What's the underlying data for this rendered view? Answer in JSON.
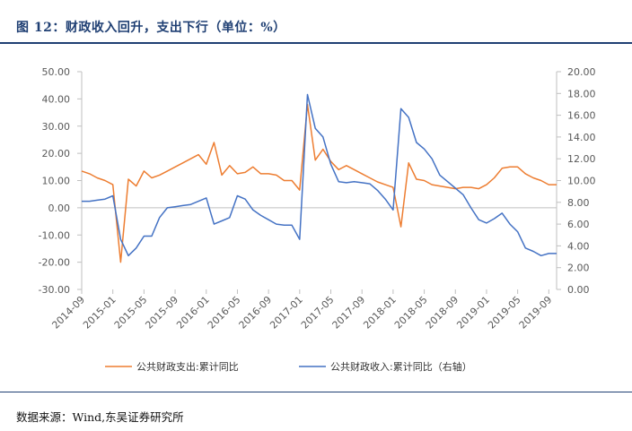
{
  "figure": {
    "title": "图 12：财政收入回升，支出下行（单位：%）",
    "source": "数据来源：Wind,东吴证券研究所"
  },
  "colors": {
    "title": "#1f3f73",
    "expenditure": "#ED7D31",
    "revenue": "#4472C4",
    "axis": "#bfbfbf",
    "tick_text": "#595959"
  },
  "chart_data": {
    "type": "line",
    "left_axis": {
      "min": -30,
      "max": 50,
      "step": 10,
      "tick_labels": [
        "-30.00",
        "-20.00",
        "-10.00",
        "0.00",
        "10.00",
        "20.00",
        "30.00",
        "40.00",
        "50.00"
      ]
    },
    "right_axis": {
      "min": 0,
      "max": 20,
      "step": 2,
      "tick_labels": [
        "0.00",
        "2.00",
        "4.00",
        "6.00",
        "8.00",
        "10.00",
        "12.00",
        "14.00",
        "16.00",
        "18.00",
        "20.00"
      ]
    },
    "x_tick_labels": [
      "2014-09",
      "2015-01",
      "2015-05",
      "2015-09",
      "2016-01",
      "2016-05",
      "2016-09",
      "2017-01",
      "2017-05",
      "2017-09",
      "2018-01",
      "2018-05",
      "2018-09",
      "2019-01",
      "2019-05",
      "2019-09"
    ],
    "x_start": "2014-09",
    "grid": false,
    "legend_position": "bottom",
    "series": [
      {
        "name": "公共财政支出:累计同比",
        "axis": "left",
        "color": "#ED7D31",
        "values": [
          13.5,
          12.5,
          11.0,
          10.0,
          8.5,
          -20.0,
          10.5,
          8.0,
          13.5,
          11.0,
          12.0,
          13.5,
          15.0,
          16.5,
          18.0,
          19.5,
          16.0,
          24.0,
          12.0,
          15.5,
          12.5,
          13.0,
          15.0,
          12.5,
          12.5,
          12.0,
          10.0,
          10.0,
          6.5,
          38.0,
          17.5,
          21.5,
          17.0,
          14.0,
          15.5,
          14.0,
          12.5,
          11.0,
          9.5,
          8.5,
          7.5,
          -7.0,
          16.5,
          10.5,
          10.0,
          8.5,
          8.0,
          7.5,
          7.0,
          7.5,
          7.5,
          7.0,
          8.5,
          11.0,
          14.5,
          15.0,
          15.0,
          12.5,
          11.0,
          10.0,
          8.5,
          8.5
        ]
      },
      {
        "name": "公共财政收入:累计同比（右轴）",
        "axis": "right",
        "color": "#4472C4",
        "values": [
          8.1,
          8.1,
          8.2,
          8.3,
          8.6,
          4.6,
          3.1,
          3.8,
          4.9,
          4.9,
          6.6,
          7.5,
          7.6,
          7.7,
          7.8,
          8.1,
          8.4,
          6.0,
          6.3,
          6.6,
          8.6,
          8.3,
          7.3,
          6.8,
          6.4,
          6.0,
          5.9,
          5.9,
          4.6,
          17.9,
          14.8,
          14.0,
          11.5,
          9.9,
          9.8,
          9.9,
          9.8,
          9.7,
          9.1,
          8.3,
          7.3,
          16.6,
          15.8,
          13.5,
          12.9,
          12.0,
          10.5,
          9.9,
          9.3,
          8.7,
          7.5,
          6.4,
          6.1,
          6.5,
          7.0,
          6.0,
          5.3,
          3.8,
          3.5,
          3.1,
          3.3,
          3.3
        ]
      }
    ]
  }
}
